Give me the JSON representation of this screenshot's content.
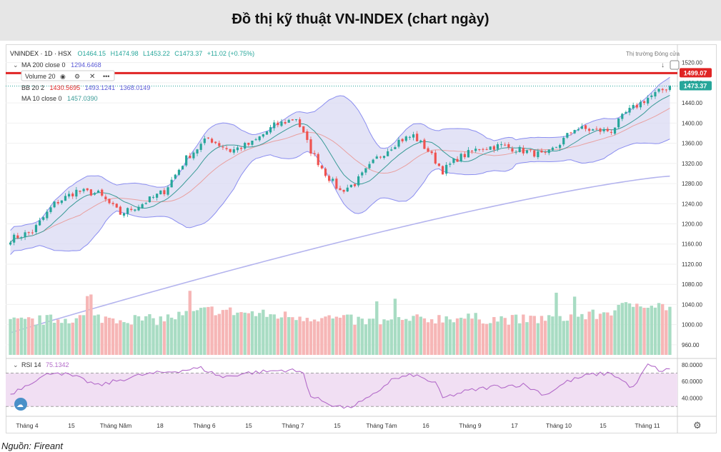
{
  "page": {
    "title": "Đồ thị kỹ thuật VN-INDEX (chart ngày)",
    "source": "Nguồn: Fireant"
  },
  "legend": {
    "symbol_line": "VNINDEX · 1D · HSX",
    "open": "O1464.15",
    "high": "H1474.98",
    "low": "L1453.22",
    "close": "C1473.37",
    "change": "+11.02 (+0.75%)",
    "ma200_label": "MA 200 close 0",
    "ma200_value": "1294.6468",
    "volume_label": "Volume 20",
    "bb_label": "BB 20 2",
    "bb_basis": "1430.5695",
    "bb_upper": "1493.1241",
    "bb_lower": "1368.0149",
    "ma10_label": "MA 10 close 0",
    "ma10_value": "1457.0390",
    "market_status": "Thị trường Đóng cửa",
    "rsi_label": "RSI 14",
    "rsi_value": "75.1342",
    "resistance_label": "1499.07",
    "last_price_label": "1473.37"
  },
  "colors": {
    "up": "#26a69a",
    "down": "#ef5350",
    "bb_line": "#8b8ef0",
    "bb_fill": "#d9d9f3",
    "ma200": "#b4b4ee",
    "ma10": "#3a9b97",
    "bb_basis": "#e9a0a0",
    "resistance": "#e02424",
    "rsi_line": "#b36bc9",
    "rsi_band": "#f1dff3"
  },
  "chart_data": {
    "type": "candlestick",
    "x_labels": [
      "Tháng 4",
      "15",
      "Tháng Năm",
      "18",
      "Tháng 6",
      "15",
      "Tháng 7",
      "15",
      "Tháng Tám",
      "16",
      "Tháng 9",
      "17",
      "Tháng 10",
      "15",
      "Tháng 11"
    ],
    "y_ticks": [
      "1520.00",
      "1480.00",
      "1440.00",
      "1400.00",
      "1360.00",
      "1320.00",
      "1280.00",
      "1240.00",
      "1200.00",
      "1160.00",
      "1120.00",
      "1080.00",
      "1040.00",
      "1000.00",
      "960.00"
    ],
    "ylim": [
      940,
      1528
    ],
    "rsi_ticks": [
      "80.0000",
      "60.0000",
      "40.0000"
    ],
    "rsi_ylim": [
      20,
      85
    ],
    "resistance_level": 1499.07,
    "last_close": 1473.37,
    "price_anchors": [
      [
        0,
        1170
      ],
      [
        6,
        1185
      ],
      [
        12,
        1240
      ],
      [
        18,
        1265
      ],
      [
        24,
        1260
      ],
      [
        30,
        1220
      ],
      [
        36,
        1240
      ],
      [
        42,
        1265
      ],
      [
        48,
        1330
      ],
      [
        54,
        1370
      ],
      [
        60,
        1345
      ],
      [
        66,
        1360
      ],
      [
        72,
        1395
      ],
      [
        78,
        1410
      ],
      [
        82,
        1345
      ],
      [
        86,
        1300
      ],
      [
        90,
        1265
      ],
      [
        94,
        1280
      ],
      [
        100,
        1330
      ],
      [
        106,
        1365
      ],
      [
        110,
        1375
      ],
      [
        114,
        1345
      ],
      [
        118,
        1305
      ],
      [
        122,
        1330
      ],
      [
        128,
        1350
      ],
      [
        134,
        1355
      ],
      [
        140,
        1345
      ],
      [
        146,
        1335
      ],
      [
        150,
        1360
      ],
      [
        154,
        1390
      ],
      [
        160,
        1385
      ],
      [
        164,
        1385
      ],
      [
        168,
        1420
      ],
      [
        174,
        1450
      ],
      [
        180,
        1473.37
      ]
    ],
    "volume_anchors": [
      [
        0,
        1000
      ],
      [
        20,
        1010
      ],
      [
        40,
        1005
      ],
      [
        55,
        1025
      ],
      [
        70,
        1015
      ],
      [
        85,
        1010
      ],
      [
        100,
        1000
      ],
      [
        120,
        1010
      ],
      [
        140,
        1005
      ],
      [
        160,
        1015
      ],
      [
        172,
        1040
      ],
      [
        180,
        1030
      ]
    ],
    "rsi_anchors": [
      [
        0,
        45
      ],
      [
        6,
        60
      ],
      [
        12,
        72
      ],
      [
        18,
        65
      ],
      [
        24,
        55
      ],
      [
        30,
        62
      ],
      [
        36,
        68
      ],
      [
        44,
        72
      ],
      [
        52,
        76
      ],
      [
        58,
        65
      ],
      [
        64,
        70
      ],
      [
        70,
        72
      ],
      [
        76,
        74
      ],
      [
        80,
        70
      ],
      [
        82,
        42
      ],
      [
        88,
        32
      ],
      [
        92,
        28
      ],
      [
        98,
        40
      ],
      [
        104,
        62
      ],
      [
        110,
        68
      ],
      [
        116,
        58
      ],
      [
        118,
        40
      ],
      [
        124,
        48
      ],
      [
        132,
        54
      ],
      [
        140,
        56
      ],
      [
        146,
        44
      ],
      [
        152,
        60
      ],
      [
        158,
        68
      ],
      [
        164,
        70
      ],
      [
        170,
        52
      ],
      [
        174,
        80
      ],
      [
        178,
        72
      ],
      [
        180,
        75.13
      ]
    ],
    "ma200_range": [
      984,
      1294.65
    ]
  }
}
